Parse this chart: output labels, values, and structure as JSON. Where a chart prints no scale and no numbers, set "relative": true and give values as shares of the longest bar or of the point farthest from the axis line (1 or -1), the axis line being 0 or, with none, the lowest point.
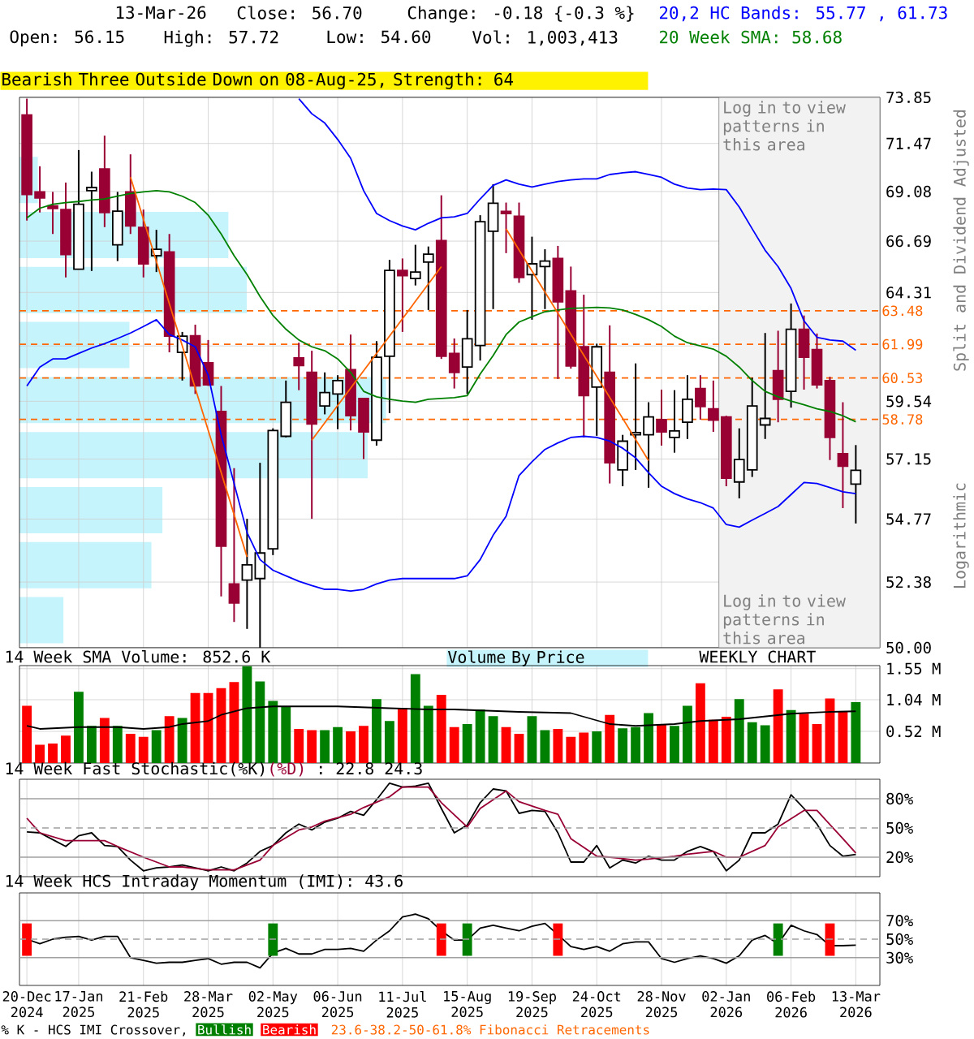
{
  "chart_data": [
    {
      "type": "candlestick",
      "title": "Bearish Three Outside Down on 08-Aug-25, Strength: 64",
      "ylabel": "Split and Dividend Adjusted",
      "annotations": [
        "13-Mar-26",
        "Close: 56.70",
        "Change: -0.18 {-0.3 %}",
        "Open: 56.15",
        "High: 57.72",
        "Low: 54.60",
        "Vol: 1,003,413",
        "Logarithmic"
      ],
      "x": [
        "2024-12-20",
        "2024-12-27",
        "2025-01-03",
        "2025-01-10",
        "2025-01-17",
        "2025-01-24",
        "2025-01-31",
        "2025-02-07",
        "2025-02-14",
        "2025-02-21",
        "2025-02-28",
        "2025-03-07",
        "2025-03-14",
        "2025-03-21",
        "2025-03-28",
        "2025-04-04",
        "2025-04-11",
        "2025-04-18",
        "2025-04-25",
        "2025-05-02",
        "2025-05-09",
        "2025-05-16",
        "2025-05-23",
        "2025-05-30",
        "2025-06-06",
        "2025-06-13",
        "2025-06-20",
        "2025-06-27",
        "2025-07-04",
        "2025-07-11",
        "2025-07-18",
        "2025-07-25",
        "2025-08-01",
        "2025-08-08",
        "2025-08-15",
        "2025-08-22",
        "2025-08-29",
        "2025-09-05",
        "2025-09-12",
        "2025-09-19",
        "2025-09-26",
        "2025-10-03",
        "2025-10-10",
        "2025-10-17",
        "2025-10-24",
        "2025-10-31",
        "2025-11-07",
        "2025-11-14",
        "2025-11-21",
        "2025-11-28",
        "2025-12-05",
        "2025-12-12",
        "2025-12-19",
        "2025-12-26",
        "2026-01-02",
        "2026-01-09",
        "2026-01-16",
        "2026-01-23",
        "2026-01-30",
        "2026-02-06",
        "2026-02-13",
        "2026-02-20",
        "2026-02-27",
        "2026-03-06",
        "2026-03-13"
      ],
      "xlim": [
        "2024-12-16",
        "2026-03-26"
      ],
      "xticks": [
        {
          "value": "2024-12-20",
          "label": null
        },
        {
          "value": "2025-01-17",
          "label": null
        },
        {
          "value": "2025-02-21",
          "label": null
        },
        {
          "value": "2025-03-28",
          "label": null
        },
        {
          "value": "2025-05-02",
          "label": null
        },
        {
          "value": "2025-06-06",
          "label": null
        },
        {
          "value": "2025-07-11",
          "label": null
        },
        {
          "value": "2025-08-15",
          "label": null
        },
        {
          "value": "2025-09-19",
          "label": null
        },
        {
          "value": "2025-10-24",
          "label": null
        },
        {
          "value": "2025-11-28",
          "label": null
        },
        {
          "value": "2026-01-02",
          "label": null
        },
        {
          "value": "2026-02-06",
          "label": null
        },
        {
          "value": "2026-03-13",
          "label": null
        }
      ],
      "tick_labels": "y",
      "ylim": [
        50,
        73.85
      ],
      "yticks": [
        {
          "value": 50,
          "label": "50.00"
        },
        52.38,
        54.77,
        57.15,
        59.54,
        {
          "value": 61.92,
          "label": null
        },
        64.31,
        66.69,
        69.08,
        71.47,
        73.85
      ],
      "log": "y",
      "grid": true,
      "ohlc": [
        [
          72.93,
          73.78,
          67.67,
          68.93
        ],
        [
          69.06,
          70.33,
          68.06,
          68.77
        ],
        [
          68.38,
          69.06,
          67.03,
          68.25
        ],
        [
          68.2,
          69.52,
          65.0,
          66.06
        ],
        [
          65.38,
          71.14,
          65.38,
          68.46
        ],
        [
          69.12,
          70.06,
          65.3,
          69.28
        ],
        [
          70.19,
          71.87,
          67.36,
          68.06
        ],
        [
          66.52,
          69.06,
          65.76,
          68.12
        ],
        [
          69.06,
          70.92,
          67.03,
          67.41
        ],
        [
          67.34,
          68.2,
          65.0,
          65.63
        ],
        [
          66.01,
          67.23,
          65.25,
          66.31
        ],
        [
          66.18,
          67.03,
          61.64,
          62.35
        ],
        [
          61.64,
          62.54,
          60.42,
          62.35
        ],
        [
          62.37,
          62.86,
          59.85,
          60.19
        ],
        [
          61.19,
          62.18,
          60.19,
          60.24
        ],
        [
          59.11,
          60.19,
          51.85,
          53.73
        ],
        [
          52.31,
          56.78,
          50.92,
          51.61
        ],
        [
          52.45,
          54.78,
          50.67,
          53.02
        ],
        [
          52.51,
          57.0,
          50.0,
          53.47
        ],
        [
          53.63,
          58.41,
          53.39,
          58.32
        ],
        [
          58.08,
          60.42,
          58.03,
          59.5
        ],
        [
          61.4,
          62.06,
          60.01,
          61.07
        ],
        [
          60.77,
          61.71,
          54.78,
          58.59
        ],
        [
          59.34,
          60.77,
          58.99,
          59.91
        ],
        [
          59.85,
          60.65,
          58.37,
          60.42
        ],
        [
          60.89,
          62.42,
          58.32,
          58.93
        ],
        [
          59.66,
          59.66,
          57.15,
          58.26
        ],
        [
          57.92,
          62.13,
          57.7,
          61.42
        ],
        [
          61.47,
          65.81,
          59.04,
          65.33
        ],
        [
          65.33,
          65.88,
          62.54,
          65.08
        ],
        [
          64.95,
          66.52,
          64.63,
          65.25
        ],
        [
          65.71,
          66.44,
          63.52,
          66.08
        ],
        [
          66.72,
          68.9,
          61.35,
          61.47
        ],
        [
          61.59,
          62.25,
          60.08,
          60.77
        ],
        [
          61.0,
          63.52,
          59.85,
          62.23
        ],
        [
          61.94,
          67.93,
          61.28,
          67.62
        ],
        [
          67.16,
          69.44,
          63.56,
          68.51
        ],
        [
          68.11,
          68.54,
          66.13,
          68.01
        ],
        [
          67.88,
          68.54,
          64.75,
          65.0
        ],
        [
          65.13,
          66.9,
          63.08,
          65.63
        ],
        [
          65.5,
          66.31,
          63.56,
          65.76
        ],
        [
          65.88,
          66.47,
          60.49,
          63.88
        ],
        [
          64.38,
          65.5,
          60.93,
          61.05
        ],
        [
          61.88,
          64.21,
          58.03,
          59.78
        ],
        [
          60.14,
          62.02,
          58.1,
          61.88
        ],
        [
          60.77,
          62.83,
          56.17,
          57.0
        ],
        [
          56.71,
          58.14,
          56.06,
          57.88
        ],
        [
          58.14,
          61.16,
          56.71,
          58.23
        ],
        [
          58.14,
          59.5,
          56.0,
          58.88
        ],
        [
          58.77,
          60.03,
          57.7,
          58.26
        ],
        [
          58.03,
          60.01,
          57.41,
          58.3
        ],
        [
          58.66,
          60.65,
          57.97,
          59.62
        ],
        [
          60.08,
          60.65,
          58.77,
          59.32
        ],
        [
          59.22,
          60.42,
          58.26,
          58.75
        ],
        [
          58.88,
          58.93,
          56.06,
          56.38
        ],
        [
          56.23,
          58.41,
          55.58,
          57.13
        ],
        [
          56.71,
          60.54,
          56.43,
          59.34
        ],
        [
          58.55,
          62.49,
          57.97,
          58.82
        ],
        [
          60.84,
          62.59,
          58.66,
          59.62
        ],
        [
          59.96,
          63.81,
          59.27,
          62.66
        ],
        [
          62.66,
          63.27,
          60.03,
          61.42
        ],
        [
          61.76,
          62.47,
          60.08,
          60.24
        ],
        [
          60.42,
          60.58,
          57.11,
          58.03
        ],
        [
          57.37,
          59.5,
          55.2,
          56.86
        ],
        [
          56.15,
          57.72,
          54.6,
          56.7
        ]
      ],
      "colors": [
        "#990033",
        "#990033",
        "#990033",
        "#990033",
        "#000000",
        "#000000",
        "#990033",
        "#000000",
        "#990033",
        "#990033",
        "#000000",
        "#990033",
        "#000000",
        "#990033",
        "#990033",
        "#990033",
        "#990033",
        "#000000",
        "#000000",
        "#000000",
        "#000000",
        "#990033",
        "#990033",
        "#000000",
        "#000000",
        "#990033",
        "#990033",
        "#000000",
        "#000000",
        "#990033",
        "#000000",
        "#000000",
        "#990033",
        "#990033",
        "#000000",
        "#000000",
        "#000000",
        "#990033",
        "#990033",
        "#000000",
        "#000000",
        "#990033",
        "#990033",
        "#990033",
        "#000000",
        "#990033",
        "#000000",
        "#000000",
        "#000000",
        "#990033",
        "#000000",
        "#000000",
        "#990033",
        "#990033",
        "#990033",
        "#000000",
        "#000000",
        "#000000",
        "#990033",
        "#000000",
        "#990033",
        "#990033",
        "#990033",
        "#990033",
        "#000000"
      ],
      "series": [
        {
          "name": "20,2 HC Bands: 55.77 , 61.73",
          "type": "line",
          "color": "#0000ff",
          "values": [
            null,
            null,
            null,
            null,
            null,
            null,
            null,
            null,
            null,
            null,
            null,
            null,
            null,
            null,
            null,
            null,
            null,
            null,
            null,
            null,
            null,
            73.78,
            72.99,
            72.51,
            71.68,
            70.73,
            69.12,
            68.01,
            67.67,
            67.41,
            67.23,
            67.54,
            67.8,
            67.85,
            68.01,
            68.72,
            69.38,
            69.65,
            69.44,
            69.3,
            69.44,
            69.57,
            69.65,
            69.7,
            69.7,
            69.92,
            70.0,
            70.06,
            69.92,
            69.78,
            69.44,
            69.25,
            69.17,
            69.2,
            69.17,
            68.33,
            67.28,
            66.26,
            65.5,
            64.5,
            63.03,
            62.3,
            62.18,
            62.13,
            61.73
          ]
        },
        {
          "type": "line",
          "color": "#0000ff",
          "values": [
            60.19,
            61.0,
            61.35,
            61.35,
            61.59,
            61.83,
            62.02,
            62.25,
            62.49,
            62.78,
            63.08,
            62.42,
            62.18,
            61.88,
            60.65,
            58.14,
            56.17,
            54.25,
            53.22,
            52.82,
            52.61,
            52.41,
            52.25,
            52.11,
            52.11,
            52.05,
            52.11,
            52.31,
            52.45,
            52.51,
            52.51,
            52.51,
            52.51,
            52.51,
            52.61,
            53.22,
            54.15,
            54.88,
            56.49,
            57.04,
            57.54,
            57.81,
            58.03,
            58.08,
            58.03,
            57.88,
            57.59,
            57.2,
            56.6,
            56.06,
            55.77,
            55.56,
            55.41,
            55.2,
            54.56,
            54.46,
            54.73,
            54.99,
            55.26,
            55.73,
            56.21,
            56.17,
            56.01,
            55.84,
            55.77
          ]
        },
        {
          "name": "20 Week SMA: 58.68",
          "type": "line",
          "color": "#008000",
          "values": [
            67.8,
            68.27,
            68.46,
            68.54,
            68.59,
            68.67,
            68.72,
            68.85,
            68.98,
            69.06,
            69.12,
            69.06,
            68.85,
            68.54,
            67.93,
            67.03,
            66.01,
            65.13,
            64.13,
            63.27,
            62.66,
            62.18,
            61.88,
            61.71,
            61.35,
            60.77,
            59.96,
            59.73,
            59.62,
            59.55,
            59.5,
            59.62,
            59.66,
            59.69,
            59.78,
            60.7,
            61.5,
            62.42,
            62.98,
            63.22,
            63.44,
            63.52,
            63.59,
            63.61,
            63.64,
            63.61,
            63.52,
            63.32,
            63.08,
            62.78,
            62.35,
            62.06,
            61.92,
            61.78,
            61.47,
            61.0,
            60.42,
            59.96,
            59.73,
            59.55,
            59.39,
            59.22,
            59.11,
            58.93,
            58.68
          ]
        },
        {
          "type": "line",
          "color": "#ff6600",
          "x": [
            "2025-02-14",
            "2025-04-18",
            "2025-05-09",
            "2025-05-23",
            "2025-08-01",
            "2025-08-22",
            "2025-09-05",
            "2025-11-21"
          ],
          "values": [
            69.79,
            53.32,
            null,
            57.92,
            65.5,
            null,
            67.28,
            57.09
          ]
        }
      ],
      "ref_lines": [
        {
          "axis": "y",
          "value": 63.48,
          "label": "63.48",
          "color": "#ff6600",
          "line_style": "dashed"
        },
        {
          "axis": "y",
          "value": 61.99,
          "label": "61.99",
          "color": "#ff6600",
          "line_style": "dashed"
        },
        {
          "axis": "y",
          "value": 60.53,
          "label": "60.53",
          "color": "#ff6600",
          "line_style": "dashed"
        },
        {
          "axis": "y",
          "value": 58.78,
          "label": "58.78",
          "color": "#ff6600",
          "line_style": "dashed"
        }
      ],
      "bands": [
        {
          "axis": "x",
          "from": "2025-12-29",
          "to": "2026-03-26",
          "label": "Log in to view patterns in this area",
          "color": "#f2f2f2"
        }
      ]
    },
    {
      "type": "bar",
      "orientation": "horizontal",
      "relative": true,
      "legend": "bottom",
      "categories": [
        null,
        null,
        null,
        null,
        null,
        null,
        null,
        null,
        null
      ],
      "series": [
        {
          "name": "Volume By Price",
          "color": "#c6f4fc",
          "values": [
            0.05,
            0.57,
            0.62,
            0.3,
            1,
            0.95,
            0.39,
            0.36,
            0.12
          ]
        }
      ]
    },
    {
      "type": "bar",
      "title": "14 Week SMA Volume: 852.6 K",
      "annotations": [
        "WEEKLY CHART"
      ],
      "x": [
        "2024-12-20",
        "2024-12-27",
        "2025-01-03",
        "2025-01-10",
        "2025-01-17",
        "2025-01-24",
        "2025-01-31",
        "2025-02-07",
        "2025-02-14",
        "2025-02-21",
        "2025-02-28",
        "2025-03-07",
        "2025-03-14",
        "2025-03-21",
        "2025-03-28",
        "2025-04-04",
        "2025-04-11",
        "2025-04-18",
        "2025-04-25",
        "2025-05-02",
        "2025-05-09",
        "2025-05-16",
        "2025-05-23",
        "2025-05-30",
        "2025-06-06",
        "2025-06-13",
        "2025-06-20",
        "2025-06-27",
        "2025-07-04",
        "2025-07-11",
        "2025-07-18",
        "2025-07-25",
        "2025-08-01",
        "2025-08-08",
        "2025-08-15",
        "2025-08-22",
        "2025-08-29",
        "2025-09-05",
        "2025-09-12",
        "2025-09-19",
        "2025-09-26",
        "2025-10-03",
        "2025-10-10",
        "2025-10-17",
        "2025-10-24",
        "2025-10-31",
        "2025-11-07",
        "2025-11-14",
        "2025-11-21",
        "2025-11-28",
        "2025-12-05",
        "2025-12-12",
        "2025-12-19",
        "2025-12-26",
        "2026-01-02",
        "2026-01-09",
        "2026-01-16",
        "2026-01-23",
        "2026-01-30",
        "2026-02-06",
        "2026-02-13",
        "2026-02-20",
        "2026-02-27",
        "2026-03-06",
        "2026-03-13"
      ],
      "xlim": [
        "2024-12-16",
        "2026-03-26"
      ],
      "xticks": [
        {
          "value": "2024-12-20",
          "label": null
        },
        {
          "value": "2025-01-17",
          "label": null
        },
        {
          "value": "2025-02-21",
          "label": null
        },
        {
          "value": "2025-03-28",
          "label": null
        },
        {
          "value": "2025-05-02",
          "label": null
        },
        {
          "value": "2025-06-06",
          "label": null
        },
        {
          "value": "2025-07-11",
          "label": null
        },
        {
          "value": "2025-08-15",
          "label": null
        },
        {
          "value": "2025-09-19",
          "label": null
        },
        {
          "value": "2025-10-24",
          "label": null
        },
        {
          "value": "2025-11-28",
          "label": null
        },
        {
          "value": "2026-01-02",
          "label": null
        },
        {
          "value": "2026-02-06",
          "label": null
        },
        {
          "value": "2026-03-13",
          "label": null
        }
      ],
      "tick_labels": "y",
      "ylim": [
        0,
        1.6
      ],
      "yticks": [
        {
          "value": 0.52,
          "label": "0.52 M"
        },
        {
          "value": 1.04,
          "label": "1.04 M"
        },
        {
          "value": 1.55,
          "label": "1.55 M"
        }
      ],
      "grid": true,
      "series": [
        {
          "type": "bar",
          "values": [
            0.94,
            0.3,
            0.32,
            0.45,
            1.17,
            0.61,
            0.74,
            0.61,
            0.48,
            0.43,
            0.54,
            0.77,
            0.74,
            1.15,
            1.15,
            1.23,
            1.33,
            1.59,
            1.34,
            1.02,
            0.92,
            0.56,
            0.54,
            0.54,
            0.59,
            0.52,
            0.61,
            1.05,
            0.69,
            0.9,
            1.46,
            0.94,
            1.12,
            0.59,
            0.64,
            0.88,
            0.77,
            0.59,
            0.48,
            0.77,
            0.54,
            0.56,
            0.43,
            0.5,
            0.52,
            0.79,
            0.57,
            0.59,
            0.82,
            0.64,
            0.61,
            0.94,
            1.31,
            0.71,
            0.76,
            1.05,
            0.67,
            0.62,
            1.21,
            0.87,
            0.81,
            0.64,
            1.06,
            0.84,
            1.0
          ],
          "colors": [
            "#ff0000",
            "#ff0000",
            "#ff0000",
            "#ff0000",
            "#008000",
            "#008000",
            "#ff0000",
            "#008000",
            "#ff0000",
            "#ff0000",
            "#008000",
            "#ff0000",
            "#008000",
            "#ff0000",
            "#ff0000",
            "#ff0000",
            "#ff0000",
            "#008000",
            "#008000",
            "#008000",
            "#008000",
            "#ff0000",
            "#ff0000",
            "#008000",
            "#008000",
            "#ff0000",
            "#ff0000",
            "#008000",
            "#008000",
            "#ff0000",
            "#008000",
            "#008000",
            "#ff0000",
            "#ff0000",
            "#008000",
            "#008000",
            "#008000",
            "#ff0000",
            "#ff0000",
            "#008000",
            "#008000",
            "#ff0000",
            "#ff0000",
            "#ff0000",
            "#008000",
            "#ff0000",
            "#008000",
            "#008000",
            "#008000",
            "#ff0000",
            "#008000",
            "#008000",
            "#ff0000",
            "#ff0000",
            "#ff0000",
            "#008000",
            "#008000",
            "#008000",
            "#ff0000",
            "#008000",
            "#ff0000",
            "#ff0000",
            "#ff0000",
            "#ff0000",
            "#008000"
          ]
        },
        {
          "type": "line",
          "color": "#000000",
          "x": [
            "2024-12-20",
            "2024-12-27",
            "2025-01-17",
            "2025-02-07",
            "2025-02-21",
            "2025-03-07",
            "2025-03-14",
            "2025-03-28",
            "2025-04-04",
            "2025-04-18",
            "2025-05-02",
            "2025-05-16",
            "2025-06-06",
            "2025-07-04",
            "2025-07-25",
            "2025-08-08",
            "2025-09-12",
            "2025-10-10",
            "2025-10-31",
            "2025-11-14",
            "2025-12-05",
            "2025-12-19",
            "2026-01-09",
            "2026-02-06",
            "2026-02-27",
            "2026-03-13"
          ],
          "values": [
            0.61,
            0.56,
            0.59,
            0.59,
            0.56,
            0.59,
            0.64,
            0.69,
            0.79,
            0.9,
            0.93,
            0.93,
            0.93,
            0.9,
            0.88,
            0.88,
            0.84,
            0.82,
            0.64,
            0.61,
            0.64,
            0.69,
            0.72,
            0.81,
            0.84,
            0.85
          ]
        }
      ]
    },
    {
      "type": "line",
      "title": "14 Week Fast Stochastic",
      "annotations": [
        ": 22.8",
        "24.3"
      ],
      "x": [
        "2024-12-20",
        "2024-12-27",
        "2025-01-03",
        "2025-01-10",
        "2025-01-17",
        "2025-01-24",
        "2025-01-31",
        "2025-02-07",
        "2025-02-14",
        "2025-02-21",
        "2025-02-28",
        "2025-03-07",
        "2025-03-14",
        "2025-03-21",
        "2025-03-28",
        "2025-04-04",
        "2025-04-11",
        "2025-04-18",
        "2025-04-25",
        "2025-05-02",
        "2025-05-09",
        "2025-05-16",
        "2025-05-23",
        "2025-05-30",
        "2025-06-06",
        "2025-06-13",
        "2025-06-20",
        "2025-06-27",
        "2025-07-04",
        "2025-07-11",
        "2025-07-18",
        "2025-07-25",
        "2025-08-01",
        "2025-08-08",
        "2025-08-15",
        "2025-08-22",
        "2025-08-29",
        "2025-09-05",
        "2025-09-12",
        "2025-09-19",
        "2025-09-26",
        "2025-10-03",
        "2025-10-10",
        "2025-10-17",
        "2025-10-24",
        "2025-10-31",
        "2025-11-07",
        "2025-11-14",
        "2025-11-21",
        "2025-11-28",
        "2025-12-05",
        "2025-12-12",
        "2025-12-19",
        "2025-12-26",
        "2026-01-02",
        "2026-01-09",
        "2026-01-16",
        "2026-01-23",
        "2026-01-30",
        "2026-02-06",
        "2026-02-13",
        "2026-02-20",
        "2026-02-27",
        "2026-03-06",
        "2026-03-13"
      ],
      "xlim": [
        "2024-12-16",
        "2026-03-26"
      ],
      "xticks": [
        {
          "value": "2024-12-20",
          "label": null
        },
        {
          "value": "2025-01-17",
          "label": null
        },
        {
          "value": "2025-02-21",
          "label": null
        },
        {
          "value": "2025-03-28",
          "label": null
        },
        {
          "value": "2025-05-02",
          "label": null
        },
        {
          "value": "2025-06-06",
          "label": null
        },
        {
          "value": "2025-07-11",
          "label": null
        },
        {
          "value": "2025-08-15",
          "label": null
        },
        {
          "value": "2025-09-19",
          "label": null
        },
        {
          "value": "2025-10-24",
          "label": null
        },
        {
          "value": "2025-11-28",
          "label": null
        },
        {
          "value": "2026-01-02",
          "label": null
        },
        {
          "value": "2026-02-06",
          "label": null
        },
        {
          "value": "2026-03-13",
          "label": null
        }
      ],
      "tick_labels": "y",
      "ylim": [
        0,
        100
      ],
      "yticks": [
        {
          "value": 20,
          "label": "20%"
        },
        {
          "value": 50,
          "label": "50%"
        },
        {
          "value": 80,
          "label": "80%"
        }
      ],
      "grid": "x",
      "ref_lines": [
        {
          "axis": "y",
          "value": 20,
          "color": "#a0a0a0"
        },
        {
          "axis": "y",
          "value": 50,
          "color": "#a0a0a0",
          "line_style": "dashed"
        },
        {
          "axis": "y",
          "value": 80,
          "color": "#a0a0a0"
        }
      ],
      "series": [
        {
          "name": "(%K)",
          "color": "#000000",
          "values": [
            46,
            45,
            38,
            31,
            42,
            45,
            32,
            31,
            17,
            6,
            9,
            10,
            12,
            9,
            6,
            10,
            6,
            14,
            26,
            32,
            45,
            54,
            48,
            56,
            60,
            67,
            63,
            79,
            96,
            92,
            93,
            96,
            70,
            45,
            53,
            76,
            90,
            88,
            65,
            68,
            67,
            45,
            15,
            15,
            32,
            9,
            17,
            14,
            21,
            17,
            17,
            26,
            31,
            26,
            6,
            17,
            45,
            45,
            54,
            84,
            70,
            54,
            32,
            21,
            22.8
          ]
        },
        {
          "name": "(%D)",
          "color": "#990033",
          "x": [
            "2024-12-20",
            "2024-12-27",
            "2025-01-10",
            "2025-01-24",
            "2025-01-31",
            "2025-02-07",
            "2025-02-21",
            "2025-03-07",
            "2025-03-14",
            "2025-03-28",
            "2025-04-04",
            "2025-04-11",
            "2025-04-18",
            "2025-04-25",
            "2025-05-02",
            "2025-05-16",
            "2025-05-23",
            "2025-05-30",
            "2025-06-13",
            "2025-06-20",
            "2025-07-04",
            "2025-07-11",
            "2025-07-18",
            "2025-07-25",
            "2025-08-01",
            "2025-08-15",
            "2025-08-22",
            "2025-09-05",
            "2025-09-12",
            "2025-09-26",
            "2025-10-03",
            "2025-10-10",
            "2025-10-24",
            "2025-10-31",
            "2025-11-14",
            "2025-11-21",
            "2025-12-05",
            "2025-12-12",
            "2025-12-26",
            "2026-01-02",
            "2026-01-09",
            "2026-01-23",
            "2026-01-30",
            "2026-02-13",
            "2026-02-20",
            "2026-03-06",
            "2026-03-13"
          ],
          "values": [
            60,
            45,
            37,
            37,
            37,
            31,
            20,
            10,
            10,
            7,
            7,
            7,
            12,
            17,
            32,
            48,
            51,
            57,
            64,
            71,
            82,
            92,
            92,
            92,
            76,
            51,
            70,
            88,
            77,
            68,
            64,
            39,
            21,
            20,
            17,
            18,
            21,
            23,
            26,
            20,
            20,
            32,
            51,
            68,
            68,
            39,
            24.3
          ]
        }
      ]
    },
    {
      "type": "line",
      "title": "14 Week HCS Intraday Momentum (IMI): 43.6",
      "legend": "bottom",
      "legend_title": "% K - HCS IMI Crossover,",
      "annotations": [
        "23.6-38.2-50-61.8% Fibonacci Retracements"
      ],
      "x": [
        "2024-12-20",
        "2024-12-27",
        "2025-01-03",
        "2025-01-10",
        "2025-01-17",
        "2025-01-24",
        "2025-01-31",
        "2025-02-07",
        "2025-02-14",
        "2025-02-21",
        "2025-02-28",
        "2025-03-07",
        "2025-03-14",
        "2025-03-21",
        "2025-03-28",
        "2025-04-04",
        "2025-04-11",
        "2025-04-18",
        "2025-04-25",
        "2025-05-02",
        "2025-05-09",
        "2025-05-16",
        "2025-05-23",
        "2025-05-30",
        "2025-06-06",
        "2025-06-13",
        "2025-06-20",
        "2025-06-27",
        "2025-07-04",
        "2025-07-11",
        "2025-07-18",
        "2025-07-25",
        "2025-08-01",
        "2025-08-08",
        "2025-08-15",
        "2025-08-22",
        "2025-08-29",
        "2025-09-05",
        "2025-09-12",
        "2025-09-19",
        "2025-09-26",
        "2025-10-03",
        "2025-10-10",
        "2025-10-17",
        "2025-10-24",
        "2025-10-31",
        "2025-11-07",
        "2025-11-14",
        "2025-11-21",
        "2025-11-28",
        "2025-12-05",
        "2025-12-12",
        "2025-12-19",
        "2025-12-26",
        "2026-01-02",
        "2026-01-09",
        "2026-01-16",
        "2026-01-23",
        "2026-01-30",
        "2026-02-06",
        "2026-02-13",
        "2026-02-20",
        "2026-02-27",
        "2026-03-06",
        "2026-03-13"
      ],
      "xlim": [
        "2024-12-16",
        "2026-03-26"
      ],
      "xticks": [
        {
          "value": "2024-12-20",
          "label": "20-Dec 2024"
        },
        {
          "value": "2025-01-17",
          "label": "17-Jan 2025"
        },
        {
          "value": "2025-02-21",
          "label": "21-Feb 2025"
        },
        {
          "value": "2025-03-28",
          "label": "28-Mar 2025"
        },
        {
          "value": "2025-05-02",
          "label": "02-May 2025"
        },
        {
          "value": "2025-06-06",
          "label": "06-Jun 2025"
        },
        {
          "value": "2025-07-11",
          "label": "11-Jul 2025"
        },
        {
          "value": "2025-08-15",
          "label": "15-Aug 2025"
        },
        {
          "value": "2025-09-19",
          "label": "19-Sep 2025"
        },
        {
          "value": "2025-10-24",
          "label": "24-Oct 2025"
        },
        {
          "value": "2025-11-28",
          "label": "28-Nov 2025"
        },
        {
          "value": "2026-01-02",
          "label": "02-Jan 2026"
        },
        {
          "value": "2026-02-06",
          "label": "06-Feb 2026"
        },
        {
          "value": "2026-03-13",
          "label": "13-Mar 2026"
        }
      ],
      "ylim": [
        0,
        100
      ],
      "yticks": [
        {
          "value": 30,
          "label": "30%"
        },
        {
          "value": 50,
          "label": "50%"
        },
        {
          "value": 70,
          "label": "70%"
        }
      ],
      "grid": "x",
      "ref_lines": [
        {
          "axis": "y",
          "value": 30,
          "color": "#a0a0a0"
        },
        {
          "axis": "y",
          "value": 50,
          "color": "#a0a0a0",
          "line_style": "dashed"
        },
        {
          "axis": "y",
          "value": 70,
          "color": "#a0a0a0"
        }
      ],
      "series": [
        {
          "color": "#000000",
          "values": [
            50,
            45,
            50,
            52,
            53,
            49,
            53,
            53,
            30,
            27,
            24,
            25,
            25,
            27,
            29,
            23,
            25,
            25,
            19,
            35,
            40,
            34,
            34,
            39,
            39,
            40,
            37,
            49,
            59,
            74,
            77,
            72,
            59,
            49,
            49,
            62,
            65,
            62,
            59,
            64,
            67,
            55,
            42,
            39,
            42,
            37,
            45,
            47,
            47,
            29,
            25,
            29,
            32,
            29,
            24,
            32,
            49,
            54,
            45,
            65,
            59,
            55,
            43,
            43,
            43.6
          ]
        },
        {
          "name": "Bullish",
          "type": "bar",
          "color": "#008000",
          "x": [
            "2025-05-02",
            "2025-08-15",
            "2026-01-30"
          ],
          "base": [
            32,
            32,
            32
          ],
          "values": [
            35,
            35,
            35
          ]
        },
        {
          "name": "Bearish",
          "type": "bar",
          "color": "#ff0000",
          "x": [
            "2024-12-20",
            "2025-08-01",
            "2025-10-03",
            "2026-02-27"
          ],
          "base": [
            32,
            32,
            32,
            32
          ],
          "values": [
            35,
            35,
            35,
            35
          ]
        }
      ]
    }
  ]
}
